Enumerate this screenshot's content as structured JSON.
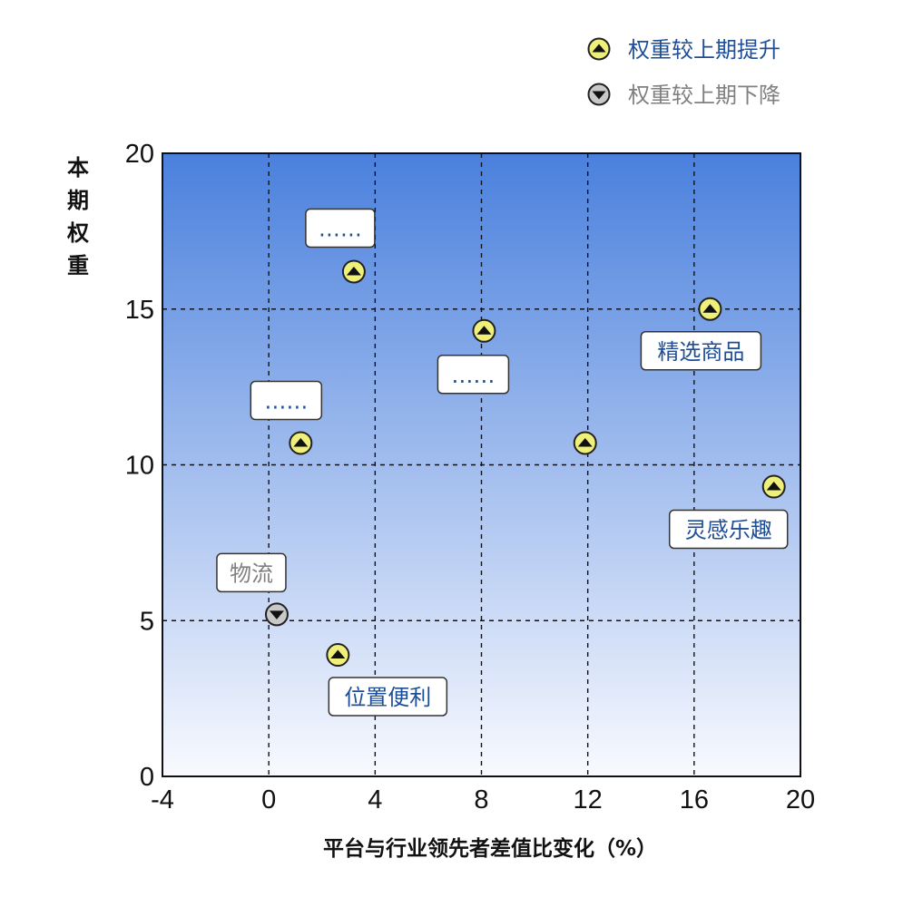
{
  "chart_data": {
    "type": "scatter",
    "xlabel": "平台与行业领先者差值比变化（%）",
    "ylabel": "本期权重",
    "xlim": [
      -4,
      20
    ],
    "ylim": [
      0,
      20
    ],
    "xticks": [
      "-4",
      "0",
      "4",
      "8",
      "12",
      "16",
      "20"
    ],
    "yticks": [
      "0",
      "5",
      "10",
      "15",
      "20"
    ],
    "grid": "dashed",
    "legend_position": "top-right",
    "series": [
      {
        "name": "权重较上期提升",
        "marker": "up-triangle-circle",
        "color": "#eef07a",
        "points": [
          {
            "x": 3.2,
            "y": 16.2,
            "label": "……"
          },
          {
            "x": 1.2,
            "y": 10.7,
            "label": "……"
          },
          {
            "x": 8.1,
            "y": 14.3,
            "label": "……"
          },
          {
            "x": 11.9,
            "y": 10.7,
            "label": ""
          },
          {
            "x": 16.6,
            "y": 15.0,
            "label": "精选商品"
          },
          {
            "x": 19.0,
            "y": 9.3,
            "label": "灵感乐趣"
          },
          {
            "x": 2.6,
            "y": 3.9,
            "label": "位置便利"
          }
        ]
      },
      {
        "name": "权重较上期下降",
        "marker": "down-triangle-circle",
        "color": "#c8c8c8",
        "points": [
          {
            "x": 0.3,
            "y": 5.2,
            "label": "物流"
          }
        ]
      }
    ]
  },
  "colors": {
    "up_text": "#1f4e96",
    "down_text": "#808080",
    "plot_top": "#4a80dd",
    "plot_bottom": "#f9faff"
  }
}
